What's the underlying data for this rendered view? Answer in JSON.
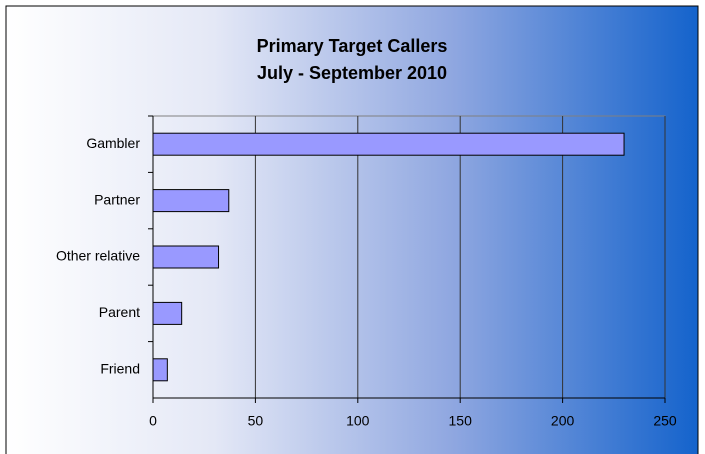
{
  "chart_data": {
    "type": "bar",
    "orientation": "horizontal",
    "title": "Primary Target Callers",
    "subtitle": "July - September 2010",
    "categories": [
      "Gambler",
      "Partner",
      "Other relative",
      "Parent",
      "Friend"
    ],
    "values": [
      230,
      37,
      32,
      14,
      7
    ],
    "color": "#9999ff",
    "xlim": [
      0,
      250
    ],
    "xticks": [
      0,
      50,
      100,
      150,
      200,
      250
    ],
    "grid": true
  }
}
